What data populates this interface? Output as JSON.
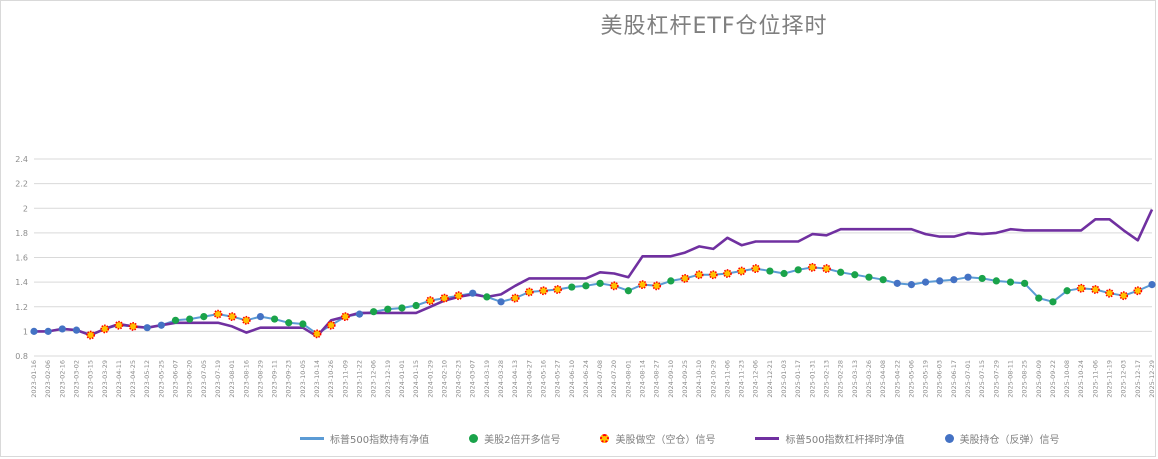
{
  "chart_data": {
    "type": "line",
    "title": "美股杠杆ETF仓位择时",
    "ylim": [
      0.8,
      2.4
    ],
    "yticks": [
      "0.8",
      "1",
      "1.2",
      "1.4",
      "1.6",
      "1.8",
      "2",
      "2.2",
      "2.4"
    ],
    "grid": true,
    "legend_position": "bottom",
    "x_labels": [
      "2023-01-16",
      "2023-02-06",
      "2023-02-16",
      "2023-03-02",
      "2023-03-15",
      "2023-03-29",
      "2023-04-11",
      "2023-04-25",
      "2023-05-12",
      "2023-05-25",
      "2023-06-07",
      "2023-06-20",
      "2023-07-05",
      "2023-07-19",
      "2023-08-01",
      "2023-08-16",
      "2023-08-29",
      "2023-09-11",
      "2023-09-23",
      "2023-10-05",
      "2023-10-14",
      "2023-10-26",
      "2023-11-09",
      "2023-11-22",
      "2023-12-06",
      "2023-12-19",
      "2024-01-01",
      "2024-01-15",
      "2024-01-29",
      "2024-02-10",
      "2024-02-23",
      "2024-03-07",
      "2024-03-19",
      "2024-03-28",
      "2024-04-13",
      "2024-04-27",
      "2024-05-16",
      "2024-05-27",
      "2024-06-10",
      "2024-06-24",
      "2024-07-08",
      "2024-07-20",
      "2024-08-01",
      "2024-08-14",
      "2024-08-27",
      "2024-09-10",
      "2024-09-25",
      "2024-10-10",
      "2024-10-29",
      "2024-11-06",
      "2024-11-23",
      "2024-12-06",
      "2024-12-21",
      "2025-01-03",
      "2025-01-17",
      "2025-01-31",
      "2025-02-13",
      "2025-02-28",
      "2025-03-13",
      "2025-03-26",
      "2025-04-08",
      "2025-04-22",
      "2025-05-06",
      "2025-05-19",
      "2025-06-03",
      "2025-06-17",
      "2025-07-01",
      "2025-07-15",
      "2025-07-29",
      "2025-08-11",
      "2025-08-25",
      "2025-09-09",
      "2025-09-22",
      "2025-10-08",
      "2025-10-24",
      "2025-11-06",
      "2025-11-19",
      "2025-12-03",
      "2025-12-17",
      "2025-12-29"
    ],
    "nav_series": {
      "name": "标普500指数持有净值",
      "color": "#5b9bd5",
      "values": [
        1.0,
        1.0,
        1.02,
        1.01,
        0.97,
        1.02,
        1.05,
        1.04,
        1.03,
        1.05,
        1.09,
        1.1,
        1.12,
        1.14,
        1.12,
        1.09,
        1.12,
        1.1,
        1.07,
        1.06,
        0.98,
        1.05,
        1.12,
        1.14,
        1.16,
        1.18,
        1.19,
        1.21,
        1.25,
        1.27,
        1.29,
        1.31,
        1.28,
        1.24,
        1.27,
        1.32,
        1.33,
        1.34,
        1.36,
        1.37,
        1.39,
        1.37,
        1.33,
        1.38,
        1.37,
        1.41,
        1.43,
        1.46,
        1.46,
        1.47,
        1.49,
        1.51,
        1.49,
        1.47,
        1.5,
        1.52,
        1.51,
        1.48,
        1.46,
        1.44,
        1.42,
        1.39,
        1.38,
        1.4,
        1.41,
        1.42,
        1.44,
        1.43,
        1.41,
        1.4,
        1.39,
        1.27,
        1.24,
        1.33,
        1.35,
        1.34,
        1.31,
        1.29,
        1.33,
        1.38
      ]
    },
    "timing_series": {
      "name": "标普500指数杠杆择时净值",
      "color": "#7030a0",
      "values": [
        1.0,
        1.0,
        1.02,
        1.01,
        0.97,
        1.02,
        1.06,
        1.04,
        1.03,
        1.05,
        1.07,
        1.07,
        1.07,
        1.07,
        1.04,
        0.99,
        1.03,
        1.03,
        1.03,
        1.03,
        0.96,
        1.09,
        1.12,
        1.15,
        1.15,
        1.15,
        1.15,
        1.15,
        1.2,
        1.25,
        1.28,
        1.3,
        1.28,
        1.3,
        1.37,
        1.43,
        1.43,
        1.43,
        1.43,
        1.43,
        1.48,
        1.47,
        1.44,
        1.61,
        1.61,
        1.61,
        1.64,
        1.69,
        1.67,
        1.76,
        1.7,
        1.73,
        1.73,
        1.73,
        1.73,
        1.79,
        1.78,
        1.83,
        1.83,
        1.83,
        1.83,
        1.83,
        1.83,
        1.79,
        1.77,
        1.77,
        1.8,
        1.79,
        1.8,
        1.83,
        1.82,
        1.82,
        1.82,
        1.82,
        1.82,
        1.91,
        1.91,
        1.82,
        1.74,
        1.99
      ]
    },
    "signals": {
      "names": [
        "美股2倍开多信号",
        "美股做空（空仓）信号",
        "美股持仓（反弹）信号"
      ],
      "colors": [
        "#1aa34a",
        "#ff0000",
        "#4472c4"
      ],
      "states": [
        2,
        2,
        2,
        2,
        1,
        1,
        1,
        1,
        2,
        2,
        0,
        0,
        0,
        1,
        1,
        1,
        2,
        0,
        0,
        0,
        1,
        1,
        1,
        2,
        0,
        0,
        0,
        0,
        1,
        1,
        1,
        2,
        0,
        2,
        1,
        1,
        1,
        1,
        0,
        0,
        0,
        1,
        0,
        1,
        1,
        0,
        1,
        1,
        1,
        1,
        1,
        1,
        0,
        0,
        0,
        1,
        1,
        0,
        0,
        0,
        0,
        2,
        2,
        2,
        2,
        2,
        2,
        0,
        0,
        0,
        0,
        0,
        0,
        0,
        1,
        1,
        1,
        1,
        1,
        2
      ]
    },
    "legend": [
      {
        "label": "标普500指数持有净值",
        "kind": "line",
        "color": "#5b9bd5"
      },
      {
        "label": "美股2倍开多信号",
        "kind": "dot",
        "color": "#1aa34a"
      },
      {
        "label": "美股做空（空仓）信号",
        "kind": "hollow",
        "color": "#ff0000"
      },
      {
        "label": "标普500指数杠杆择时净值",
        "kind": "line",
        "color": "#7030a0"
      },
      {
        "label": "美股持仓（反弹）信号",
        "kind": "dot",
        "color": "#4472c4"
      }
    ]
  }
}
